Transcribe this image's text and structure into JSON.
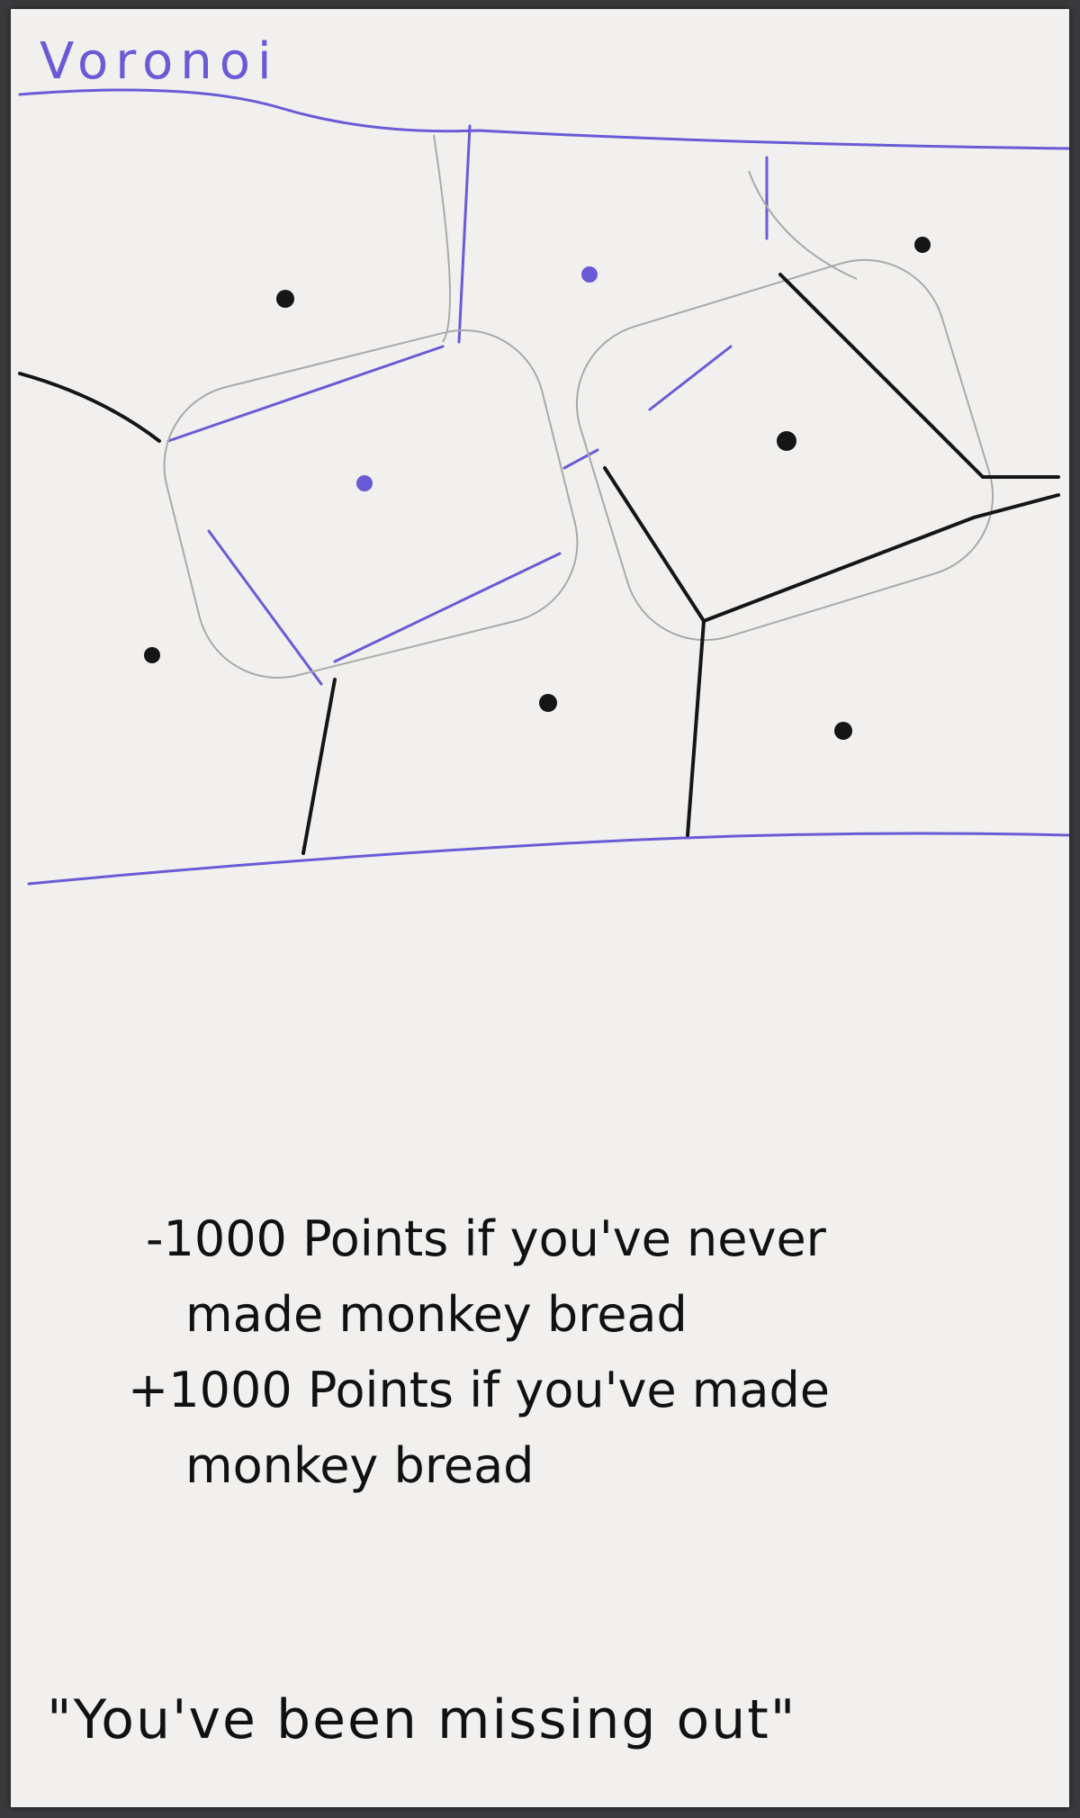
{
  "title": "Voronoi",
  "notes": [
    "-1000 Points if you've never",
    "made monkey bread",
    "+1000 Points if you've made",
    "monkey bread"
  ],
  "quote": "\"You've been missing out\"",
  "colors": {
    "purple_ink": "#6a5ad6",
    "black_ink": "#151515",
    "pencil": "#a9a9a9",
    "card": "#f1f0ee"
  }
}
